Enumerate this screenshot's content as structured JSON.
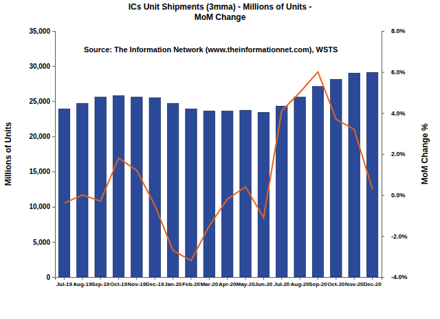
{
  "chart_data": {
    "type": "bar",
    "title": [
      "ICs Unit Shipments (3mma) - Millions of Units -",
      "MoM Change"
    ],
    "annotations": [
      "Source: The Information Network (www.theinformationnet.com), WSTS"
    ],
    "y_label": "Millions of Units",
    "y2_label": "MoM Change %",
    "categories": [
      "Jul-19",
      "Aug-19",
      "Sep-19",
      "Oct-19",
      "Nov-19",
      "Dec-19",
      "Jan-20",
      "Feb-20",
      "Mar-20",
      "Apr-20",
      "May-20",
      "Jun-20",
      "Jul-20",
      "Aug-20",
      "Sep-20",
      "Oct-20",
      "Nov-20",
      "Dec-20"
    ],
    "series": [
      {
        "type": "bar",
        "color": "#2c4a9a",
        "values": [
          23900,
          24700,
          25600,
          25800,
          25600,
          25500,
          24700,
          23900,
          23600,
          23600,
          23700,
          23400,
          24300,
          25600,
          27100,
          28100,
          29000,
          29100
        ]
      },
      {
        "type": "line",
        "axis": "y2",
        "color": "#e8621a",
        "values": [
          -0.4,
          0.0,
          -0.3,
          1.8,
          1.2,
          -0.5,
          -2.7,
          -3.2,
          -1.5,
          -0.2,
          0.4,
          -1.1,
          4.1,
          5.0,
          6.0,
          3.7,
          3.2,
          0.3
        ]
      }
    ],
    "ylim": [
      0,
      35000
    ],
    "yticks": [
      0,
      {
        "value": 5000,
        "label": "5,000"
      },
      {
        "value": 10000,
        "label": "10,000"
      },
      {
        "value": 15000,
        "label": "15,000"
      },
      {
        "value": 20000,
        "label": "20,000"
      },
      {
        "value": 25000,
        "label": "25,000"
      },
      {
        "value": 30000,
        "label": "30,000"
      },
      {
        "value": 35000,
        "label": "35,000"
      }
    ],
    "y2lim": [
      -4,
      8
    ],
    "y2ticks": [
      {
        "value": -4,
        "label": "-4.0%"
      },
      {
        "value": -2,
        "label": "-2.0%"
      },
      {
        "value": 0,
        "label": "0.0%"
      },
      {
        "value": 2,
        "label": "2.0%"
      },
      {
        "value": 4,
        "label": "4.0%"
      },
      {
        "value": 6,
        "label": "6.0%"
      },
      {
        "value": 8,
        "label": "8.0%"
      }
    ],
    "grid": false
  }
}
